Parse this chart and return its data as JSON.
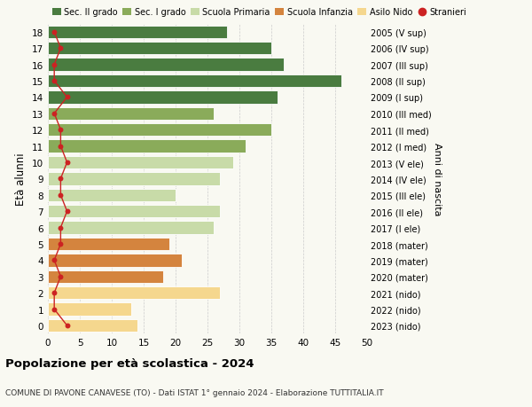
{
  "ages": [
    0,
    1,
    2,
    3,
    4,
    5,
    6,
    7,
    8,
    9,
    10,
    11,
    12,
    13,
    14,
    15,
    16,
    17,
    18
  ],
  "bar_values": [
    14,
    13,
    27,
    18,
    21,
    19,
    26,
    27,
    20,
    27,
    29,
    31,
    35,
    26,
    36,
    46,
    37,
    35,
    28
  ],
  "stranieri": [
    3,
    1,
    1,
    2,
    1,
    2,
    2,
    3,
    2,
    2,
    3,
    2,
    2,
    1,
    3,
    1,
    1,
    2,
    1
  ],
  "right_labels": [
    "2023 (nido)",
    "2022 (nido)",
    "2021 (nido)",
    "2020 (mater)",
    "2019 (mater)",
    "2018 (mater)",
    "2017 (I ele)",
    "2016 (II ele)",
    "2015 (III ele)",
    "2014 (IV ele)",
    "2013 (V ele)",
    "2012 (I med)",
    "2011 (II med)",
    "2010 (III med)",
    "2009 (I sup)",
    "2008 (II sup)",
    "2007 (III sup)",
    "2006 (IV sup)",
    "2005 (V sup)"
  ],
  "bar_colors": [
    "#f5d78e",
    "#f5d78e",
    "#f5d78e",
    "#d4843e",
    "#d4843e",
    "#d4843e",
    "#c8dba8",
    "#c8dba8",
    "#c8dba8",
    "#c8dba8",
    "#c8dba8",
    "#8aab5a",
    "#8aab5a",
    "#8aab5a",
    "#4a7c40",
    "#4a7c40",
    "#4a7c40",
    "#4a7c40",
    "#4a7c40"
  ],
  "legend_labels": [
    "Sec. II grado",
    "Sec. I grado",
    "Scuola Primaria",
    "Scuola Infanzia",
    "Asilo Nido",
    "Stranieri"
  ],
  "legend_colors": [
    "#4a7c40",
    "#8aab5a",
    "#c8dba8",
    "#d4843e",
    "#f5d78e",
    "#cc2222"
  ],
  "stranieri_color": "#cc2222",
  "ylabel": "Età alunni",
  "right_ylabel": "Anni di nascita",
  "title": "Popolazione per età scolastica - 2024",
  "subtitle": "COMUNE DI PAVONE CANAVESE (TO) - Dati ISTAT 1° gennaio 2024 - Elaborazione TUTTITALIA.IT",
  "xlim": [
    0,
    50
  ],
  "xticks": [
    0,
    5,
    10,
    15,
    20,
    25,
    30,
    35,
    40,
    45,
    50
  ],
  "bg_color": "#f9f9f2",
  "grid_color": "#cccccc"
}
